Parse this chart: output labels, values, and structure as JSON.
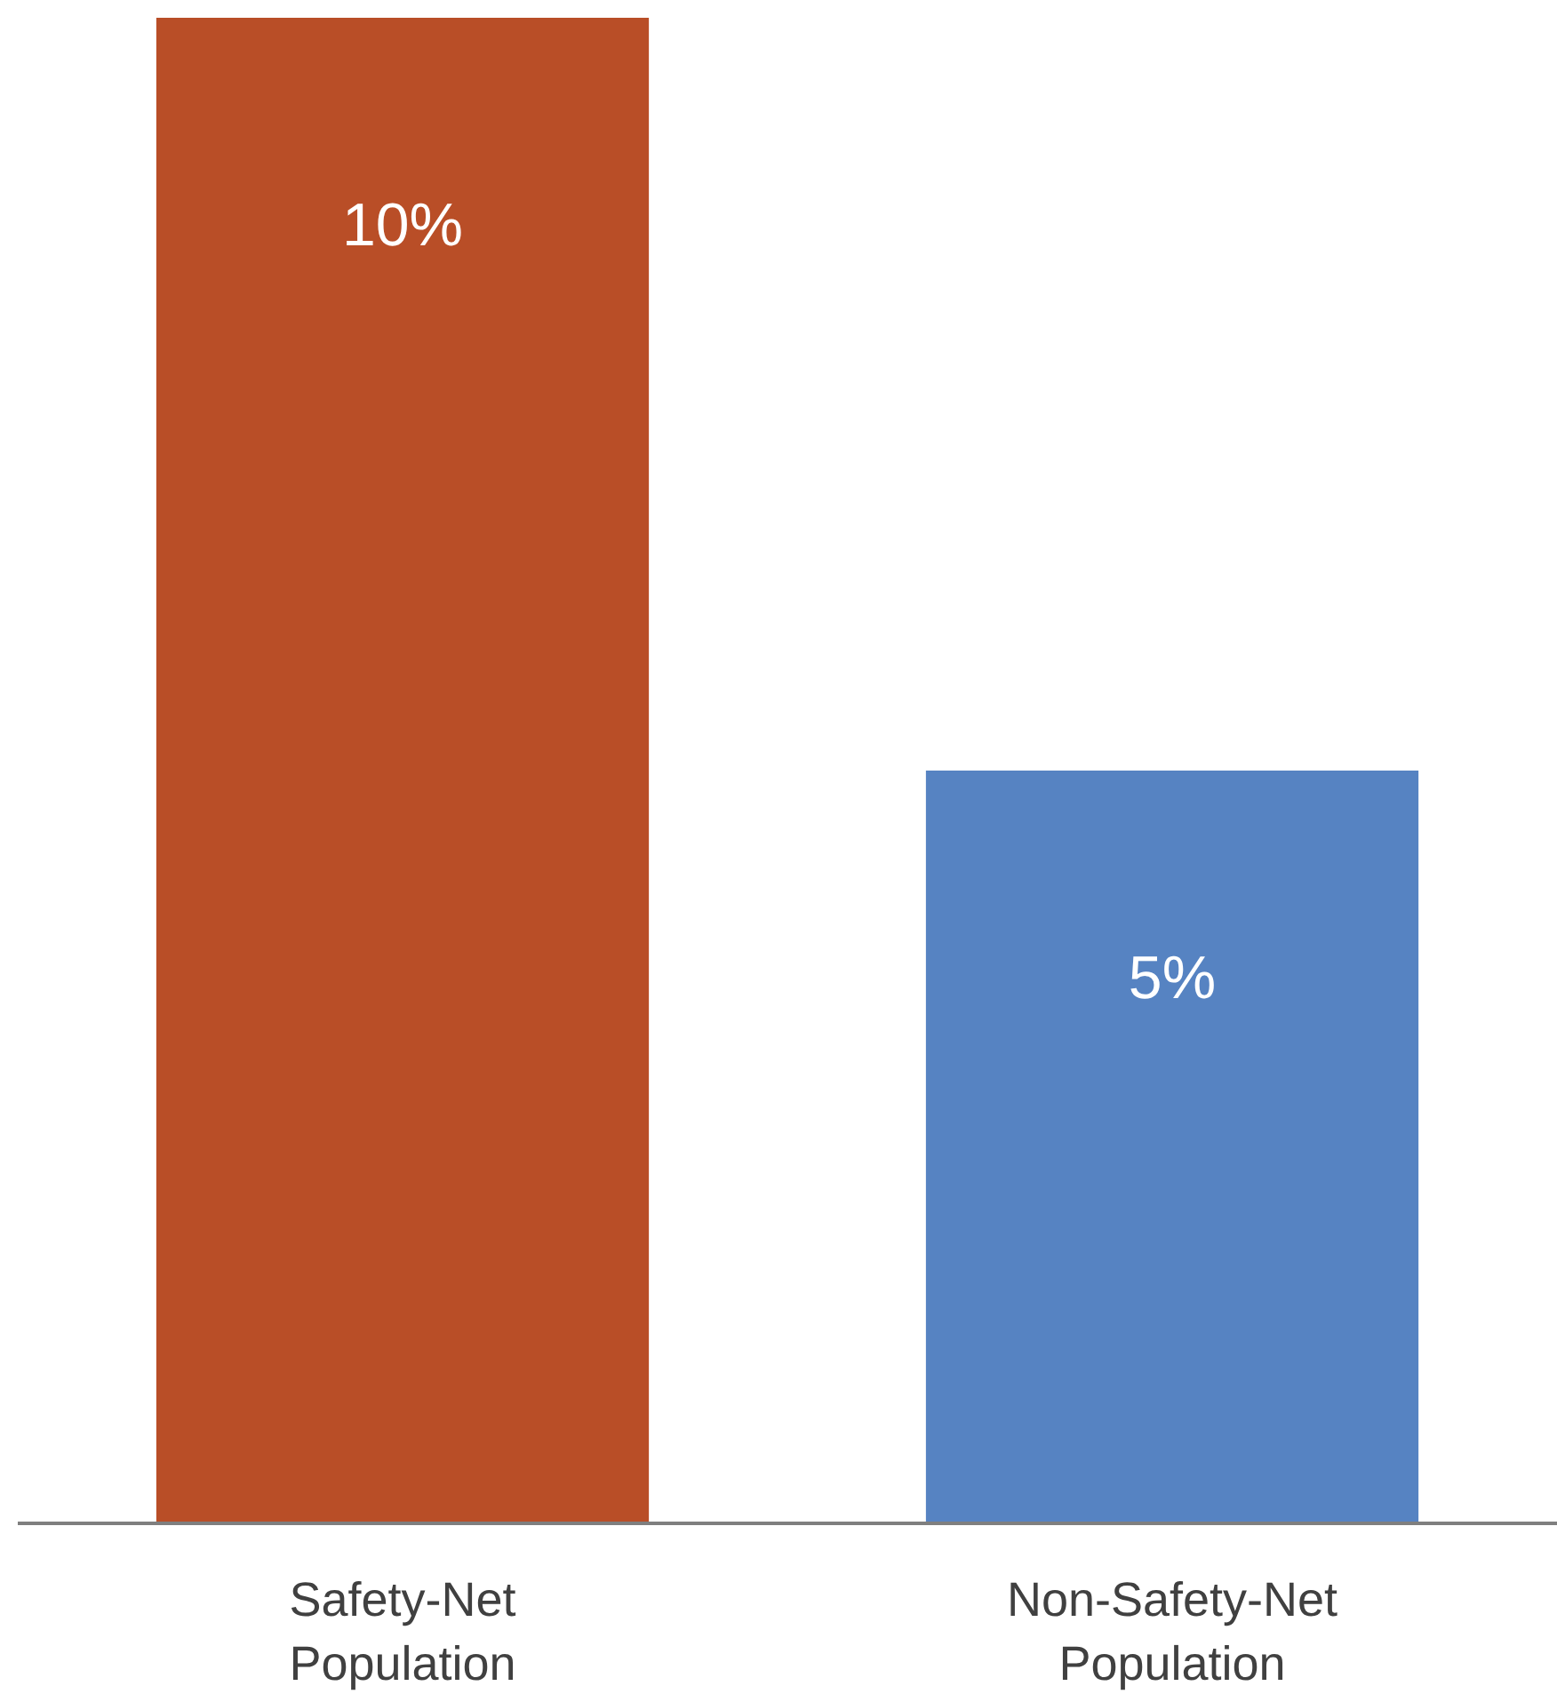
{
  "chart_data": {
    "type": "bar",
    "categories": [
      "Safety-Net Population",
      "Non-Safety-Net Population"
    ],
    "values": [
      10,
      5
    ],
    "colors": [
      "#b94e27",
      "#5683c2"
    ],
    "value_labels": [
      "10%",
      "5%"
    ],
    "ylim": [
      0,
      10
    ],
    "tick_labels": "x"
  }
}
